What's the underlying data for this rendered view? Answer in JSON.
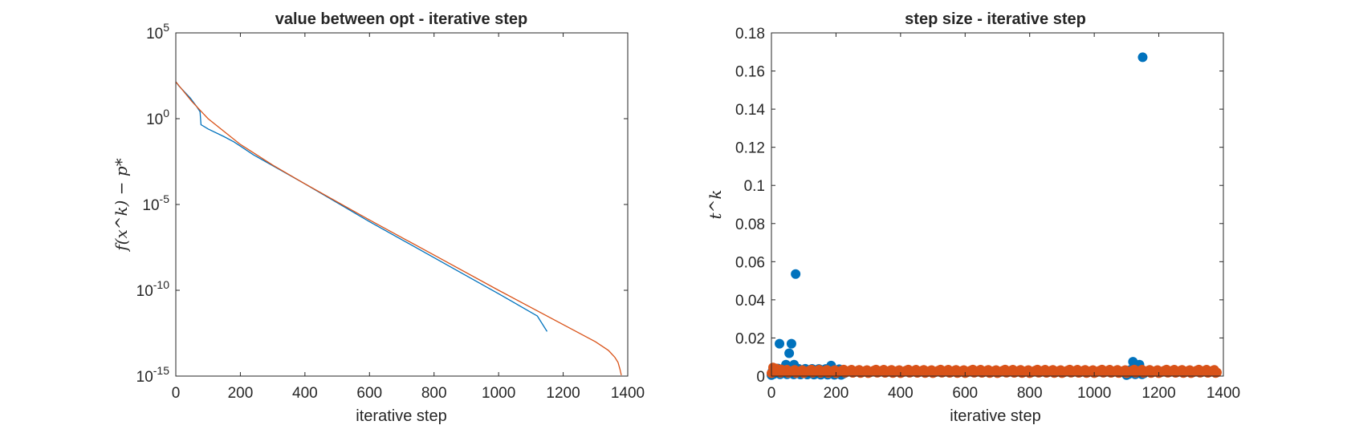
{
  "chart_data": [
    {
      "type": "line",
      "title": "value between opt - iterative step",
      "xlabel": "iterative step",
      "ylabel": "f(x^k) − p*",
      "yscale": "log",
      "xlim": [
        0,
        1400
      ],
      "ylim_log10": [
        -15,
        5
      ],
      "xticks": [
        "0",
        "200",
        "400",
        "600",
        "800",
        "1000",
        "1200",
        "1400"
      ],
      "yticks": [
        {
          "base": "10",
          "exp": "-15"
        },
        {
          "base": "10",
          "exp": "-10"
        },
        {
          "base": "10",
          "exp": "-5"
        },
        {
          "base": "10",
          "exp": "0"
        },
        {
          "base": "10",
          "exp": "5"
        }
      ],
      "grid": false,
      "series": [
        {
          "color": "#0072BD",
          "x": [
            0,
            10,
            30,
            45,
            65,
            75,
            78,
            100,
            150,
            180,
            200,
            240,
            400,
            600,
            800,
            1000,
            1120,
            1150
          ],
          "log10_y": [
            2.15,
            1.9,
            1.5,
            1.2,
            0.7,
            0.4,
            -0.35,
            -0.6,
            -1.05,
            -1.35,
            -1.6,
            -2.1,
            -3.8,
            -6.0,
            -8.1,
            -10.2,
            -11.5,
            -12.4
          ]
        },
        {
          "color": "#D95319",
          "x": [
            0,
            50,
            100,
            200,
            300,
            400,
            600,
            800,
            1000,
            1200,
            1300,
            1340,
            1360,
            1370,
            1376,
            1380
          ],
          "log10_y": [
            2.15,
            1.0,
            0.0,
            -1.5,
            -2.7,
            -3.8,
            -5.9,
            -7.95,
            -10.0,
            -12.0,
            -13.0,
            -13.5,
            -13.9,
            -14.2,
            -14.6,
            -14.95
          ]
        }
      ]
    },
    {
      "type": "scatter",
      "title": "step size - iterative step",
      "xlabel": "iterative step",
      "ylabel": "t^k",
      "xlim": [
        0,
        1400
      ],
      "ylim": [
        0,
        0.18
      ],
      "xticks": [
        "0",
        "200",
        "400",
        "600",
        "800",
        "1000",
        "1200",
        "1400"
      ],
      "yticks": [
        "0",
        "0.02",
        "0.04",
        "0.06",
        "0.08",
        "0.1",
        "0.12",
        "0.14",
        "0.16",
        "0.18"
      ],
      "grid": false,
      "series": [
        {
          "color": "#0072BD",
          "outliers": [
            {
              "x": 25,
              "y": 0.017
            },
            {
              "x": 55,
              "y": 0.012
            },
            {
              "x": 62,
              "y": 0.017
            },
            {
              "x": 75,
              "y": 0.0535
            },
            {
              "x": 45,
              "y": 0.006
            },
            {
              "x": 70,
              "y": 0.006
            },
            {
              "x": 185,
              "y": 0.0055
            },
            {
              "x": 1120,
              "y": 0.0075
            },
            {
              "x": 1140,
              "y": 0.006
            },
            {
              "x": 1150,
              "y": 0.1672
            }
          ],
          "dense_ranges": [
            {
              "x_from": 0,
              "x_to": 230,
              "y_from": 0.0005,
              "y_to": 0.004
            },
            {
              "x_from": 1100,
              "x_to": 1155,
              "y_from": 0.0005,
              "y_to": 0.004
            }
          ]
        },
        {
          "color": "#D95319",
          "band": {
            "x_from": 0,
            "x_to": 1380,
            "y_from": 0.0015,
            "y_to": 0.0035
          },
          "head_points": [
            {
              "x": 5,
              "y": 0.0045
            },
            {
              "x": 15,
              "y": 0.004
            },
            {
              "x": 30,
              "y": 0.0035
            }
          ]
        }
      ]
    }
  ]
}
